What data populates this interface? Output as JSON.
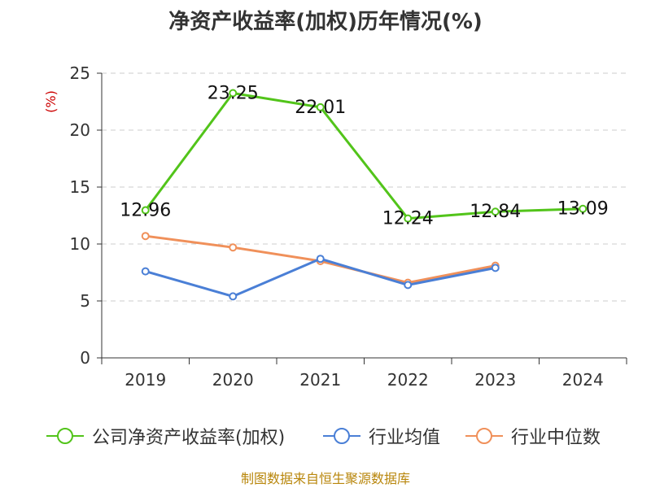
{
  "chart_data": {
    "type": "line",
    "title": "净资产收益率(加权)历年情况(%)",
    "ylabel": "(%)",
    "xlabel": "",
    "ylim": [
      0,
      25
    ],
    "yticks": [
      0,
      5,
      10,
      15,
      20,
      25
    ],
    "categories": [
      "2019",
      "2020",
      "2021",
      "2022",
      "2023",
      "2024"
    ],
    "grid": true,
    "legend_position": "bottom",
    "series": [
      {
        "name": "公司净资产收益率(加权)",
        "color": "#52c41a",
        "values": [
          12.96,
          23.25,
          22.01,
          12.24,
          12.84,
          13.09
        ],
        "labels": [
          "12.96",
          "23.25",
          "22.01",
          "12.24",
          "12.84",
          "13.09"
        ]
      },
      {
        "name": "行业均值",
        "color": "#4a7fd6",
        "values": [
          7.6,
          5.4,
          8.7,
          6.4,
          7.9,
          null
        ]
      },
      {
        "name": "行业中位数",
        "color": "#f0905a",
        "values": [
          10.7,
          9.7,
          8.5,
          6.6,
          8.1,
          null
        ]
      }
    ]
  },
  "footer": {
    "source": "制图数据来自恒生聚源数据库"
  },
  "colors": {
    "axis": "#333333",
    "grid": "#cccccc",
    "ylabel": "#cc0000",
    "source": "#b8860b"
  }
}
